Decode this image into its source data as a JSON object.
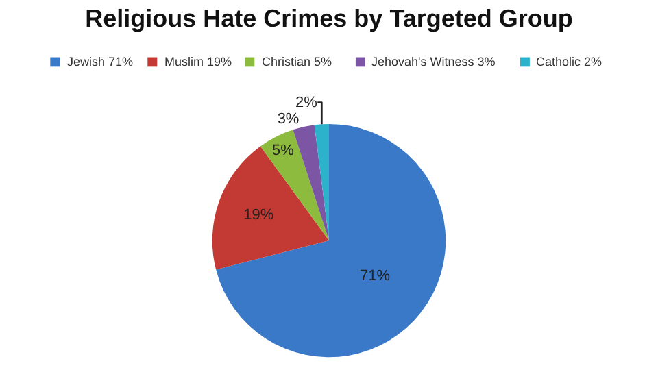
{
  "chart_data": {
    "type": "pie",
    "title": "Religious Hate Crimes by Targeted Group",
    "categories": [
      "Jewish 71%",
      "Muslim 19%",
      "Christian 5%",
      "Jehovah's Witness 3%",
      "Catholic 2%"
    ],
    "values": [
      71,
      19,
      5,
      3,
      2
    ],
    "colors": [
      "#3a78c8",
      "#c33a34",
      "#8cbb3e",
      "#7c55a4",
      "#2db2cc"
    ],
    "value_labels": [
      "71%",
      "19%",
      "5%",
      "3%",
      "2%"
    ],
    "legend": "top"
  }
}
